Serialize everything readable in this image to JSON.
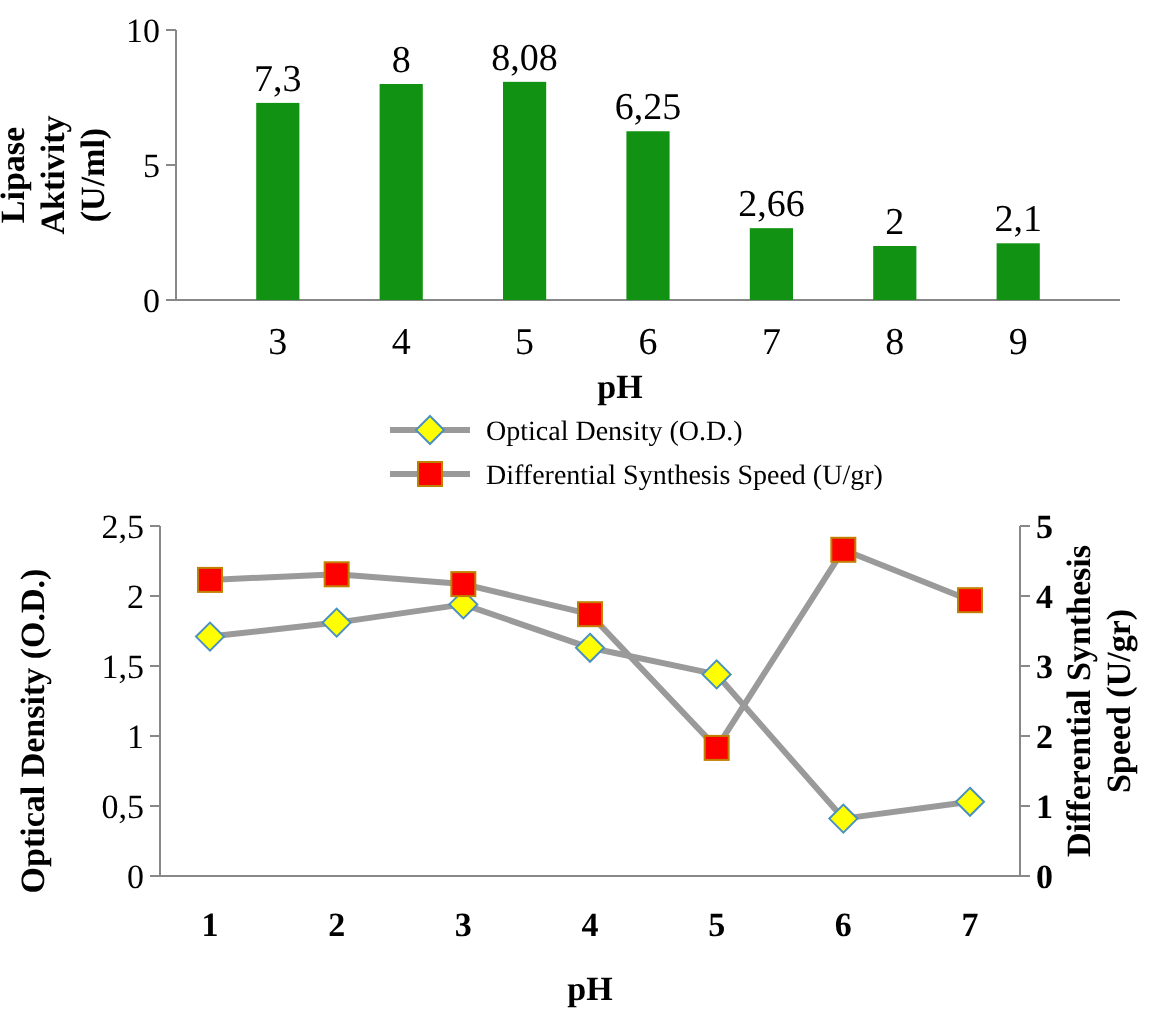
{
  "chart_data": [
    {
      "type": "bar",
      "categories": [
        "3",
        "4",
        "5",
        "6",
        "7",
        "8",
        "9"
      ],
      "xlabel": "pH",
      "ylabel": "Lipase Aktivity (U/ml)",
      "values": [
        7.3,
        8,
        8.08,
        6.25,
        2.66,
        2,
        2.1
      ],
      "value_labels": [
        "7,3",
        "8",
        "8,08",
        "6,25",
        "2,66",
        "2",
        "2,1"
      ],
      "color": "#129212",
      "ylim": [
        0,
        10
      ],
      "yticks": [
        0,
        5,
        10
      ],
      "grid": false
    },
    {
      "type": "line",
      "categories": [
        "1",
        "2",
        "3",
        "4",
        "5",
        "6",
        "7"
      ],
      "xlabel": "pH",
      "ylabel": "Optical Density (O.D.)",
      "y2label": "Differential Synthesis Speed (U/gr)",
      "ylim": [
        0,
        2.5
      ],
      "yticks": [
        0,
        {
          "value": 0.5,
          "label": "0,5"
        },
        1,
        {
          "value": 1.5,
          "label": "1,5"
        },
        2,
        {
          "value": 2.5,
          "label": "2,5"
        }
      ],
      "y2lim": [
        0,
        5
      ],
      "y2ticks": [
        0,
        1,
        2,
        3,
        4,
        5
      ],
      "legend": "top",
      "grid": false,
      "series": [
        {
          "name": "Optical Density (O.D.)",
          "color": "#ffff00",
          "marker": "diamond",
          "values": [
            1.71,
            1.81,
            1.94,
            1.63,
            1.44,
            0.41,
            0.53
          ]
        },
        {
          "name": "Differential Synthesis Speed (U/gr)",
          "color": "#ff0000",
          "marker": "square",
          "axis": "y2",
          "values": [
            4.23,
            4.31,
            4.17,
            3.74,
            1.83,
            4.66,
            3.94
          ]
        }
      ]
    }
  ]
}
